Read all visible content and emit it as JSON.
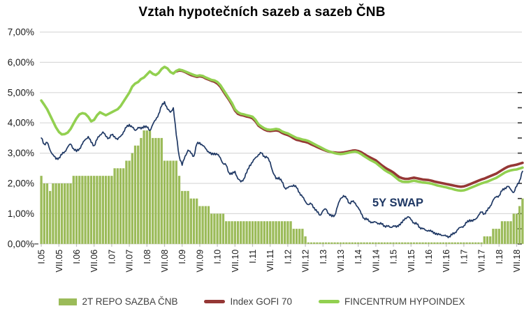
{
  "title": "Vztah hypotečních sazeb a sazeb ČNB",
  "annotation": {
    "label": "5Y SWAP",
    "color": "#1f3864"
  },
  "colors": {
    "bar_green": "#9bbb59",
    "hypoindex_green": "#92d050",
    "gofi_red": "#953735",
    "swap_navy": "#1f3864",
    "gridline": "#d9d9d9",
    "axis_text": "#1a1a1a",
    "legend_text": "#404040",
    "right_tick": "#333333"
  },
  "chart_data": {
    "type": "combo bar+line",
    "frequency": "monthly",
    "x_start": "2005-01",
    "x_end": "2018-09",
    "ylim": [
      0,
      7
    ],
    "grid": "horizontal",
    "y_tick_labels": [
      "0,00%",
      "1,00%",
      "2,00%",
      "3,00%",
      "4,00%",
      "5,00%",
      "6,00%",
      "7,00%"
    ],
    "x_tick_labels": [
      "I.05",
      "VII.05",
      "I.06",
      "VII.06",
      "I.07",
      "VII.07",
      "I.08",
      "VII.08",
      "I.09",
      "VII.09",
      "I.10",
      "VII.10",
      "I.11",
      "VII.11",
      "I.12",
      "VII.12",
      "I.13",
      "VII.13",
      "I.14",
      "VII.14",
      "I.15",
      "VII.15",
      "I.16",
      "VII.16",
      "I.17",
      "VII.17",
      "I.18",
      "VII.18"
    ],
    "x_tick_every_n_months": 6,
    "right_axis_ticks": {
      "from": 0,
      "to": 5,
      "step": 0.5
    },
    "legend_position": "bottom",
    "series": [
      {
        "name": "2T REPO SAZBA ČNB",
        "type": "bar",
        "color": "#9bbb59",
        "values": [
          2.25,
          2,
          2,
          1.75,
          2,
          2,
          2,
          2,
          2,
          2,
          2,
          2.25,
          2.25,
          2.25,
          2.25,
          2.25,
          2.25,
          2.25,
          2.25,
          2.25,
          2.25,
          2.25,
          2.25,
          2.25,
          2.25,
          2.5,
          2.5,
          2.5,
          2.5,
          2.75,
          2.75,
          3,
          3.25,
          3.25,
          3.5,
          3.75,
          3.75,
          3.75,
          3.5,
          3.5,
          3.5,
          3.5,
          2.75,
          2.75,
          2.75,
          2.75,
          2.75,
          2.25,
          1.75,
          1.75,
          1.75,
          1.5,
          1.5,
          1.5,
          1.25,
          1.25,
          1.25,
          1.25,
          1,
          1,
          1,
          1,
          1,
          0.75,
          0.75,
          0.75,
          0.75,
          0.75,
          0.75,
          0.75,
          0.75,
          0.75,
          0.75,
          0.75,
          0.75,
          0.75,
          0.75,
          0.75,
          0.75,
          0.75,
          0.75,
          0.75,
          0.75,
          0.75,
          0.75,
          0.75,
          0.5,
          0.5,
          0.5,
          0.5,
          0.25,
          0.05,
          0.05,
          0.05,
          0.05,
          0.05,
          0.05,
          0.05,
          0.05,
          0.05,
          0.05,
          0.05,
          0.05,
          0.05,
          0.05,
          0.05,
          0.05,
          0.05,
          0.05,
          0.05,
          0.05,
          0.05,
          0.05,
          0.05,
          0.05,
          0.05,
          0.05,
          0.05,
          0.05,
          0.05,
          0.05,
          0.05,
          0.05,
          0.05,
          0.05,
          0.05,
          0.05,
          0.05,
          0.05,
          0.05,
          0.05,
          0.05,
          0.05,
          0.05,
          0.05,
          0.05,
          0.05,
          0.05,
          0.05,
          0.05,
          0.05,
          0.05,
          0.05,
          0.05,
          0.05,
          0.05,
          0.05,
          0.05,
          0.05,
          0.05,
          0.05,
          0.25,
          0.25,
          0.25,
          0.5,
          0.5,
          0.5,
          0.75,
          0.75,
          0.75,
          0.75,
          1,
          1,
          1.25,
          1.5
        ]
      },
      {
        "name": "Index GOFI 70",
        "type": "line",
        "color": "#953735",
        "values": [
          null,
          null,
          null,
          null,
          null,
          null,
          null,
          null,
          null,
          null,
          null,
          null,
          null,
          null,
          null,
          null,
          null,
          null,
          null,
          null,
          null,
          null,
          null,
          null,
          null,
          null,
          null,
          null,
          null,
          null,
          null,
          null,
          null,
          null,
          null,
          null,
          null,
          null,
          null,
          null,
          null,
          null,
          null,
          null,
          null,
          null,
          5.7,
          5.73,
          5.72,
          5.68,
          5.63,
          5.58,
          5.55,
          5.52,
          5.54,
          5.52,
          5.47,
          5.43,
          5.39,
          5.36,
          5.3,
          5.2,
          5.05,
          4.9,
          4.76,
          4.6,
          4.41,
          4.3,
          4.26,
          4.24,
          4.21,
          4.19,
          4.15,
          4.05,
          3.91,
          3.84,
          3.78,
          3.74,
          3.73,
          3.74,
          3.75,
          3.73,
          3.67,
          3.63,
          3.6,
          3.55,
          3.49,
          3.44,
          3.42,
          3.39,
          3.37,
          3.34,
          3.29,
          3.25,
          3.2,
          3.16,
          3.12,
          3.08,
          3.05,
          3.03,
          3.02,
          3.01,
          3.01,
          3.02,
          3.04,
          3.06,
          3.08,
          3.09,
          3.07,
          3.03,
          2.97,
          2.91,
          2.86,
          2.81,
          2.76,
          2.68,
          2.6,
          2.53,
          2.47,
          2.42,
          2.36,
          2.28,
          2.21,
          2.17,
          2.15,
          2.15,
          2.17,
          2.19,
          2.17,
          2.15,
          2.13,
          2.12,
          2.11,
          2.09,
          2.06,
          2.04,
          2.02,
          2.0,
          1.98,
          1.96,
          1.94,
          1.92,
          1.9,
          1.89,
          1.9,
          1.93,
          1.97,
          2.01,
          2.05,
          2.09,
          2.13,
          2.16,
          2.2,
          2.24,
          2.28,
          2.32,
          2.38,
          2.44,
          2.5,
          2.55,
          2.58,
          2.6,
          2.62,
          2.65,
          2.68
        ]
      },
      {
        "name": "FINCENTRUM HYPOINDEX",
        "type": "line",
        "color": "#92d050",
        "values": [
          4.74,
          4.6,
          4.45,
          4.25,
          4.05,
          3.85,
          3.7,
          3.62,
          3.63,
          3.68,
          3.8,
          3.98,
          4.15,
          4.28,
          4.32,
          4.3,
          4.2,
          4.05,
          4.1,
          4.25,
          4.35,
          4.3,
          4.25,
          4.3,
          4.35,
          4.4,
          4.45,
          4.55,
          4.7,
          4.85,
          5.0,
          5.2,
          5.3,
          5.35,
          5.45,
          5.5,
          5.6,
          5.7,
          5.62,
          5.58,
          5.65,
          5.78,
          5.85,
          5.8,
          5.68,
          5.63,
          5.72,
          5.76,
          5.74,
          5.7,
          5.66,
          5.62,
          5.58,
          5.55,
          5.57,
          5.55,
          5.5,
          5.46,
          5.42,
          5.4,
          5.35,
          5.25,
          5.1,
          4.95,
          4.8,
          4.65,
          4.45,
          4.35,
          4.3,
          4.28,
          4.25,
          4.23,
          4.2,
          4.1,
          3.95,
          3.88,
          3.82,
          3.78,
          3.77,
          3.78,
          3.8,
          3.78,
          3.72,
          3.68,
          3.65,
          3.6,
          3.55,
          3.5,
          3.48,
          3.45,
          3.43,
          3.4,
          3.35,
          3.3,
          3.25,
          3.2,
          3.15,
          3.1,
          3.06,
          3.03,
          3.0,
          2.98,
          2.97,
          2.98,
          3.0,
          3.02,
          3.04,
          3.05,
          3.02,
          2.97,
          2.9,
          2.84,
          2.78,
          2.73,
          2.68,
          2.6,
          2.52,
          2.44,
          2.38,
          2.33,
          2.26,
          2.18,
          2.1,
          2.06,
          2.05,
          2.05,
          2.07,
          2.09,
          2.07,
          2.05,
          2.03,
          2.02,
          2.01,
          1.99,
          1.96,
          1.93,
          1.91,
          1.89,
          1.87,
          1.84,
          1.82,
          1.79,
          1.77,
          1.76,
          1.77,
          1.8,
          1.84,
          1.88,
          1.92,
          1.96,
          2.0,
          2.03,
          2.06,
          2.1,
          2.14,
          2.18,
          2.24,
          2.3,
          2.36,
          2.4,
          2.43,
          2.45,
          2.46,
          2.49,
          2.52
        ]
      },
      {
        "name": "5Y SWAP",
        "type": "line",
        "color": "#1f3864",
        "values": [
          3.5,
          3.3,
          3.35,
          3.1,
          2.95,
          2.8,
          2.85,
          2.95,
          3.05,
          3.2,
          3.3,
          3.15,
          3.05,
          3.15,
          3.3,
          3.45,
          3.55,
          3.35,
          3.25,
          3.45,
          3.6,
          3.7,
          3.55,
          3.5,
          3.6,
          3.55,
          3.45,
          3.55,
          3.7,
          3.85,
          3.95,
          3.85,
          3.75,
          3.85,
          3.8,
          3.9,
          3.85,
          3.75,
          3.95,
          4.1,
          4.3,
          4.55,
          4.7,
          4.45,
          4.35,
          4.5,
          3.6,
          2.9,
          2.6,
          2.9,
          3.1,
          3.0,
          2.9,
          3.3,
          3.35,
          3.25,
          3.15,
          3.05,
          2.95,
          3.0,
          2.95,
          2.85,
          2.65,
          2.6,
          2.35,
          2.3,
          2.4,
          2.15,
          2.05,
          2.15,
          2.35,
          2.6,
          2.7,
          2.85,
          2.95,
          3.0,
          2.9,
          2.85,
          2.7,
          2.35,
          2.15,
          2.2,
          2.05,
          1.85,
          1.85,
          1.9,
          1.95,
          1.85,
          1.7,
          1.55,
          1.4,
          1.3,
          1.32,
          1.2,
          1.05,
          0.95,
          1.1,
          1.15,
          1.0,
          0.9,
          0.95,
          1.25,
          1.5,
          1.6,
          1.5,
          1.35,
          1.4,
          1.35,
          1.2,
          1.0,
          0.85,
          0.8,
          0.75,
          0.7,
          0.72,
          0.68,
          0.65,
          0.6,
          0.58,
          0.55,
          0.6,
          0.55,
          0.65,
          0.7,
          0.85,
          0.9,
          0.8,
          0.7,
          0.65,
          0.55,
          0.5,
          0.45,
          0.45,
          0.4,
          0.38,
          0.3,
          0.32,
          0.28,
          0.25,
          0.25,
          0.3,
          0.38,
          0.48,
          0.55,
          0.6,
          0.7,
          0.8,
          0.75,
          0.82,
          0.95,
          1.05,
          1.0,
          1.1,
          1.25,
          1.45,
          1.55,
          1.6,
          1.75,
          1.85,
          1.9,
          1.8,
          1.7,
          1.9,
          2.1,
          2.4
        ]
      }
    ]
  }
}
